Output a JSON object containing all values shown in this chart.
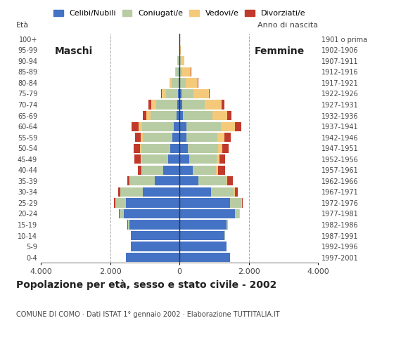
{
  "age_groups": [
    "0-4",
    "5-9",
    "10-14",
    "15-19",
    "20-24",
    "25-29",
    "30-34",
    "35-39",
    "40-44",
    "45-49",
    "50-54",
    "55-59",
    "60-64",
    "65-69",
    "70-74",
    "75-79",
    "80-84",
    "85-89",
    "90-94",
    "95-99",
    "100+"
  ],
  "birth_years": [
    "1997-2001",
    "1992-1996",
    "1987-1991",
    "1982-1986",
    "1977-1981",
    "1972-1976",
    "1967-1971",
    "1962-1966",
    "1957-1961",
    "1952-1956",
    "1947-1951",
    "1942-1946",
    "1937-1941",
    "1932-1936",
    "1927-1931",
    "1922-1926",
    "1917-1921",
    "1912-1916",
    "1907-1911",
    "1902-1906",
    "1901 o prima"
  ],
  "males": {
    "celibi": [
      1550,
      1400,
      1400,
      1450,
      1600,
      1550,
      1050,
      720,
      470,
      330,
      270,
      200,
      170,
      90,
      70,
      40,
      30,
      20,
      10,
      0,
      0
    ],
    "coniugati": [
      5,
      5,
      10,
      40,
      130,
      300,
      650,
      700,
      600,
      750,
      820,
      850,
      900,
      750,
      600,
      350,
      200,
      80,
      30,
      5,
      0
    ],
    "vedovi": [
      0,
      0,
      2,
      2,
      5,
      5,
      10,
      15,
      20,
      35,
      50,
      60,
      120,
      120,
      150,
      120,
      50,
      30,
      15,
      2,
      0
    ],
    "divorziati": [
      0,
      0,
      0,
      5,
      15,
      30,
      50,
      80,
      120,
      180,
      180,
      180,
      200,
      100,
      80,
      15,
      10,
      5,
      5,
      0,
      0
    ]
  },
  "females": {
    "nubili": [
      1450,
      1350,
      1300,
      1350,
      1600,
      1450,
      900,
      550,
      380,
      290,
      240,
      200,
      190,
      100,
      70,
      50,
      25,
      20,
      10,
      0,
      0
    ],
    "coniugate": [
      5,
      5,
      10,
      45,
      130,
      330,
      680,
      800,
      680,
      790,
      870,
      900,
      1000,
      850,
      650,
      350,
      150,
      60,
      25,
      5,
      0
    ],
    "vedove": [
      0,
      0,
      2,
      3,
      5,
      15,
      25,
      35,
      50,
      80,
      130,
      200,
      400,
      430,
      500,
      450,
      350,
      250,
      100,
      30,
      5
    ],
    "divorziate": [
      0,
      0,
      0,
      3,
      10,
      30,
      80,
      150,
      200,
      160,
      180,
      180,
      200,
      120,
      80,
      20,
      10,
      5,
      5,
      0,
      0
    ]
  },
  "colors": {
    "celibi": "#4472c4",
    "coniugati": "#b8cca4",
    "vedovi": "#f5c97a",
    "divorziati": "#c0392b"
  },
  "title": "Popolazione per età, sesso e stato civile - 2002",
  "subtitle": "COMUNE DI COMO · Dati ISTAT 1° gennaio 2002 · Elaborazione TUTTITALIA.IT",
  "xlabel_left": "Maschi",
  "xlabel_right": "Femmine",
  "ylabel_left": "Età",
  "ylabel_right": "Anno di nascita",
  "legend_labels": [
    "Celibi/Nubili",
    "Coniugati/e",
    "Vedovi/e",
    "Divorziati/e"
  ],
  "xlim": 4000,
  "xticklabels": [
    "4.000",
    "2.000",
    "0",
    "2.000",
    "4.000"
  ],
  "background_color": "#ffffff",
  "grid_color": "#aaaaaa"
}
